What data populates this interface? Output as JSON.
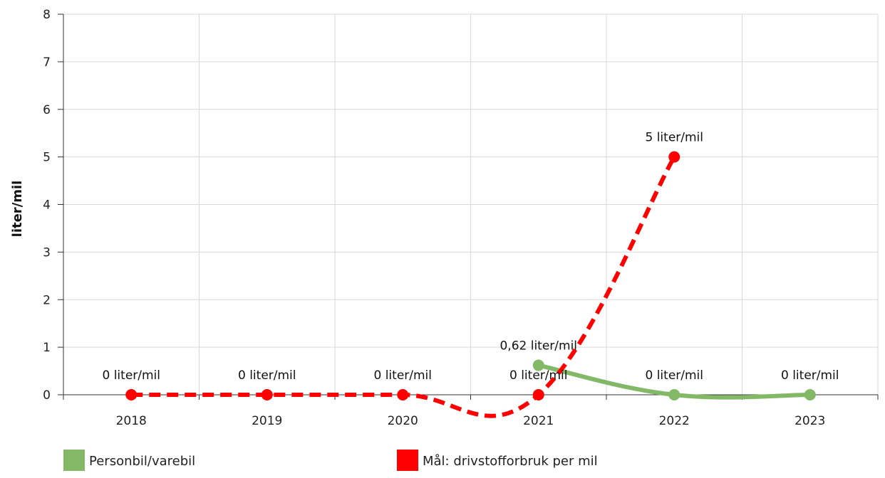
{
  "chart_data": {
    "type": "line",
    "ylabel": "liter/mil",
    "xlabel": "",
    "categories": [
      "2018",
      "2019",
      "2020",
      "2021",
      "2022",
      "2023"
    ],
    "ylim": [
      0,
      8
    ],
    "yticks": [
      0,
      1,
      2,
      3,
      4,
      5,
      6,
      7,
      8
    ],
    "grid": true,
    "legend_position": "bottom",
    "series": [
      {
        "name": "Personbil/varebil",
        "color": "#82b866",
        "style": "solid",
        "values": [
          null,
          null,
          null,
          0.62,
          0,
          0
        ],
        "labels": [
          null,
          null,
          null,
          "0,62 liter/mil",
          "0 liter/mil",
          "0 liter/mil"
        ]
      },
      {
        "name": "Mål: drivstofforbruk per mil",
        "color": "#ff0000",
        "style": "dashed",
        "values": [
          0,
          0,
          0,
          0,
          5,
          null
        ],
        "labels": [
          "0 liter/mil",
          "0 liter/mil",
          "0 liter/mil",
          "0 liter/mil",
          "5 liter/mil",
          null
        ]
      }
    ]
  }
}
